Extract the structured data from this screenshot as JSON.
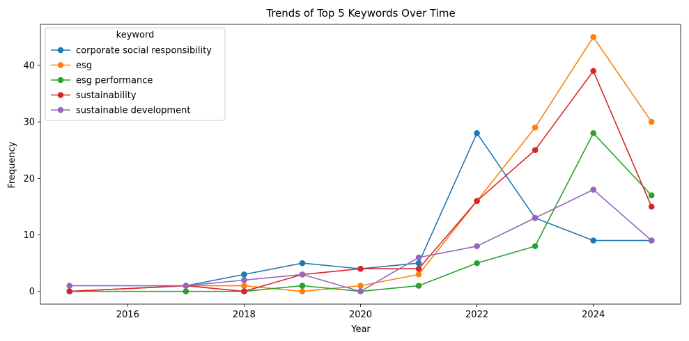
{
  "chart_data": {
    "type": "line",
    "title": "Trends of Top 5 Keywords Over Time",
    "xlabel": "Year",
    "ylabel": "Frequency",
    "xlim": [
      2014.5,
      2025.5
    ],
    "ylim": [
      -2.25,
      47.25
    ],
    "xticks": [
      2016,
      2018,
      2020,
      2022,
      2024
    ],
    "yticks": [
      0,
      10,
      20,
      30,
      40
    ],
    "legend_title": "keyword",
    "legend_position": "top-left",
    "series": [
      {
        "name": "corporate social responsibility",
        "color": "#1f77b4",
        "x": [
          2015,
          2017,
          2018,
          2019,
          2020,
          2021,
          2022,
          2023,
          2024,
          2025
        ],
        "values": [
          0,
          1,
          3,
          5,
          4,
          5,
          28,
          13,
          9,
          9
        ]
      },
      {
        "name": "esg",
        "color": "#ff7f0e",
        "x": [
          2015,
          2017,
          2018,
          2019,
          2020,
          2021,
          2022,
          2023,
          2024,
          2025
        ],
        "values": [
          0,
          1,
          1,
          0,
          1,
          3,
          16,
          29,
          45,
          30
        ]
      },
      {
        "name": "esg performance",
        "color": "#2ca02c",
        "x": [
          2015,
          2017,
          2018,
          2019,
          2020,
          2021,
          2022,
          2023,
          2024,
          2025
        ],
        "values": [
          0,
          0,
          0,
          1,
          0,
          1,
          5,
          8,
          28,
          17
        ]
      },
      {
        "name": "sustainability",
        "color": "#d62728",
        "x": [
          2015,
          2017,
          2018,
          2019,
          2020,
          2021,
          2022,
          2023,
          2024,
          2025
        ],
        "values": [
          0,
          1,
          0,
          3,
          4,
          4,
          16,
          25,
          39,
          15
        ]
      },
      {
        "name": "sustainable development",
        "color": "#9467bd",
        "x": [
          2015,
          2017,
          2018,
          2019,
          2020,
          2021,
          2022,
          2023,
          2024,
          2025
        ],
        "values": [
          1,
          1,
          2,
          3,
          0,
          6,
          8,
          13,
          18,
          9
        ]
      }
    ]
  }
}
